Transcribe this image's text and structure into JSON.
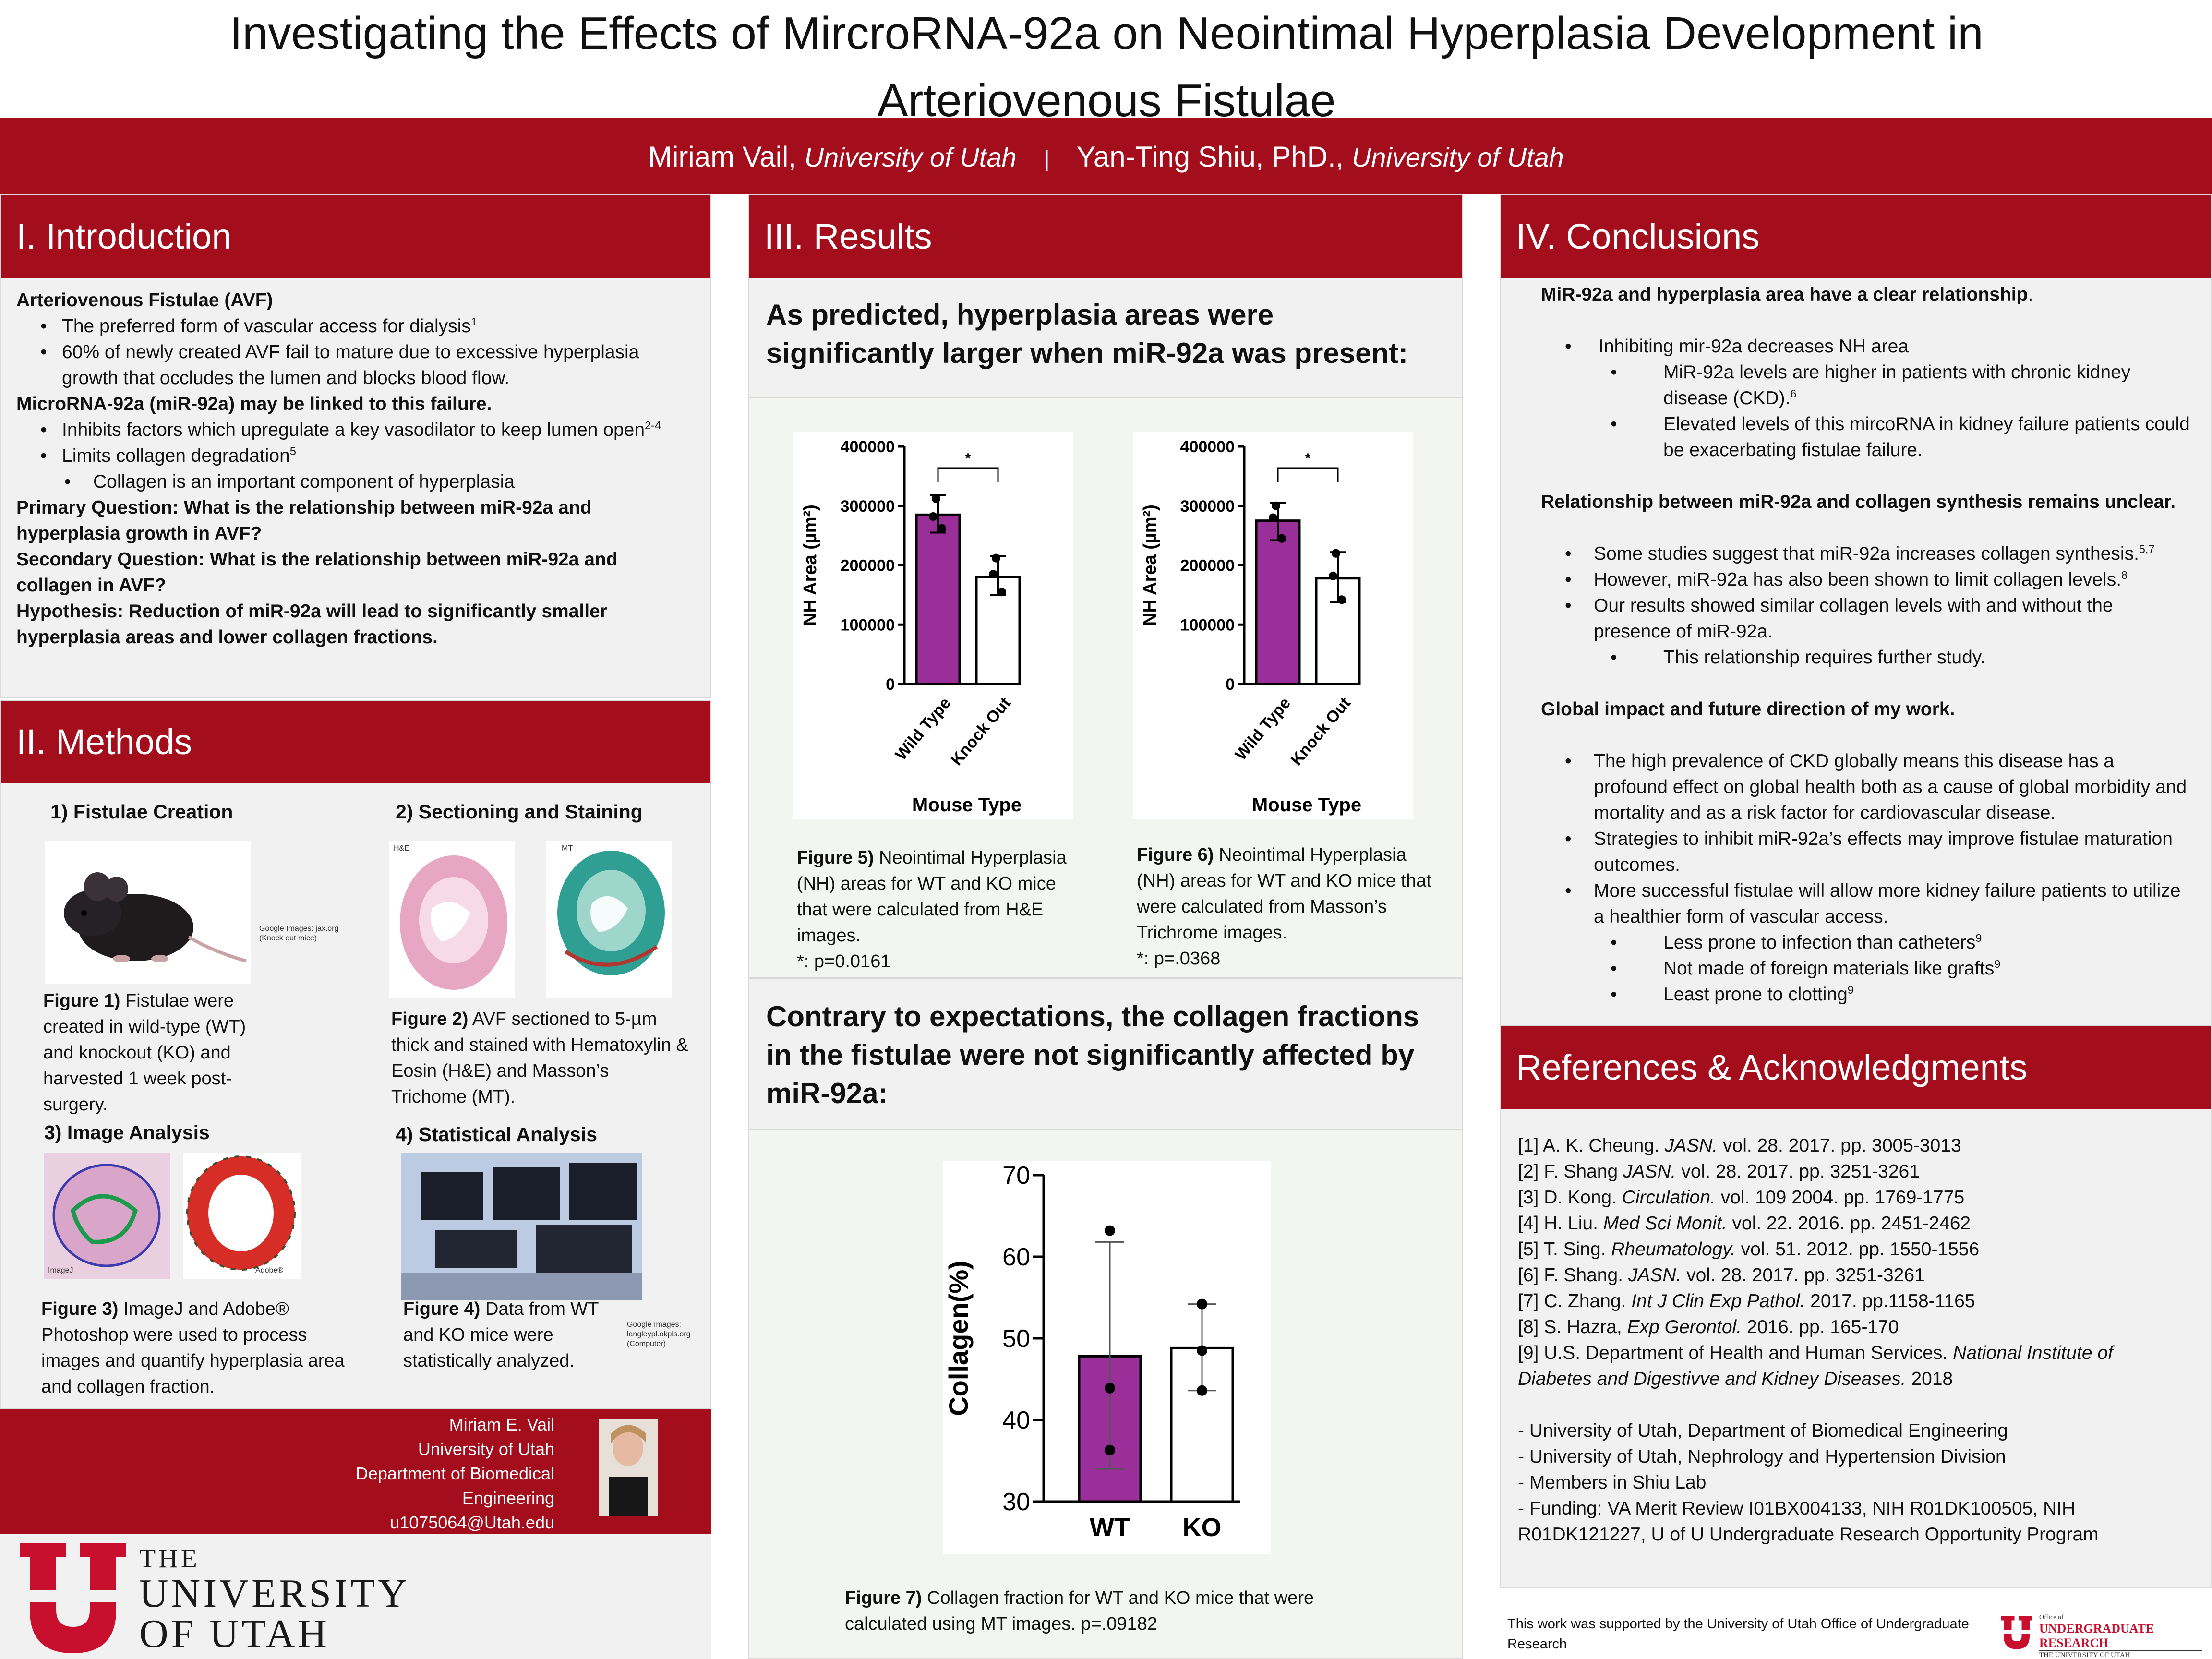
{
  "title": {
    "line1": "Investigating the Effects of MircroRNA-92a on Neointimal Hyperplasia Development in",
    "line2": "Arteriovenous Fistulae"
  },
  "authors": {
    "a1_name": "Miriam Vail, ",
    "a1_affil": "University of Utah",
    "separator": "|",
    "a2_name": "Yan-Ting Shiu, PhD., ",
    "a2_affil": "University of Utah"
  },
  "colors": {
    "brand_red": "#a30d1c",
    "purple": "#9b2f9a",
    "panel_bg": "#f1f1f1"
  },
  "intro": {
    "heading": "I. Introduction",
    "avf_title": "Arteriovenous Fistulae (AVF)",
    "avf_b1": "The preferred form of vascular access for dialysis",
    "avf_b1_sup": "1",
    "avf_b2": "60% of newly created AVF fail to mature due to excessive hyperplasia growth that occludes the lumen and blocks blood flow.",
    "mir_title": "MicroRNA-92a (miR-92a) may be linked to this failure.",
    "mir_b1": "Inhibits factors which upregulate a key vasodilator to keep lumen open",
    "mir_b1_sup": "2-4",
    "mir_b2": "Limits collagen degradation",
    "mir_b2_sup": "5",
    "mir_b3": "Collagen is an important component of hyperplasia",
    "q1": "Primary Question: What is the relationship between miR-92a and hyperplasia growth in AVF?",
    "q2": "Secondary Question: What is the relationship between miR-92a and collagen in AVF?",
    "hyp": "Hypothesis: Reduction of miR-92a will lead to significantly smaller hyperplasia areas and lower collagen fractions."
  },
  "methods": {
    "heading": "II. Methods",
    "s1": "1) Fistulae Creation",
    "s2": "2) Sectioning and Staining",
    "s3": "3) Image Analysis",
    "s4": "4) Statistical Analysis",
    "credit1": "Google Images: jax.org (Knock out mice)",
    "credit4": "Google Images: langleypl.okpls.org (Computer)",
    "he_label": "H&E",
    "mt_label": "MT",
    "imagej_label": "ImageJ",
    "adobe_label": "Adobe®",
    "fig1_label": "Figure 1)",
    "fig1_text": " Fistulae were created in wild-type (WT) and knockout (KO) and harvested 1 week post-surgery.",
    "fig2_label": "Figure 2)",
    "fig2_text": " AVF sectioned to 5-µm thick and stained with Hematoxylin & Eosin (H&E) and Masson’s Trichome (MT).",
    "fig3_label": "Figure 3)",
    "fig3_text": " ImageJ and Adobe® Photoshop were used to process images and quantify hyperplasia area and collagen fraction.",
    "fig4_label": "Figure 4)",
    "fig4_text": " Data from WT and KO mice were statistically analyzed."
  },
  "contact": {
    "name": "Miriam E. Vail",
    "univ": "University of Utah",
    "dept1": "Department of Biomedical",
    "dept2": "Engineering",
    "email": "u1075064@Utah.edu"
  },
  "logo": {
    "the": "THE",
    "university": "UNIVERSITY",
    "of_utah": "OF UTAH"
  },
  "results": {
    "heading": "III. Results",
    "q_top": "As predicted, hyperplasia areas were significantly larger when miR-92a was present:",
    "q_bottom": "Contrary to expectations, the collagen fractions in the fistulae were not significantly affected by miR-92a:",
    "fig5_label": "Figure 5)",
    "fig5_text": "  Neointimal Hyperplasia (NH) areas for WT and KO mice that were calculated from H&E images.",
    "fig5_p": "*: p=0.0161",
    "fig6_label": "Figure 6)",
    "fig6_text": " Neointimal Hyperplasia (NH) areas for WT and KO mice that were calculated from Masson’s Trichrome images.",
    "fig6_p": "*: p=.0368",
    "fig7_label": "Figure 7)",
    "fig7_text": " Collagen fraction for WT and KO mice that were calculated using MT images. p=.09182"
  },
  "chart_data": [
    {
      "type": "bar",
      "ylabel": "NH Area (µm²)",
      "xlabel": "Mouse Type",
      "categories": [
        "Wild Type",
        "Knock Out"
      ],
      "values": [
        285000,
        180000
      ],
      "error_upper": [
        318000,
        215000
      ],
      "error_lower": [
        255000,
        150000
      ],
      "points": [
        [
          312000,
          282000,
          262000
        ],
        [
          212000,
          185000,
          155000
        ]
      ],
      "significance": "*",
      "ylim": [
        0,
        400000
      ],
      "yticks": [
        "0",
        "100000",
        "200000",
        "300000",
        "400000"
      ],
      "colors": [
        "#9b2f9a",
        "#ffffff"
      ]
    },
    {
      "type": "bar",
      "ylabel": "NH Area (µm²)",
      "xlabel": "Mouse Type",
      "categories": [
        "Wild Type",
        "Knock Out"
      ],
      "values": [
        275000,
        178000
      ],
      "error_upper": [
        305000,
        222000
      ],
      "error_lower": [
        242000,
        138000
      ],
      "points": [
        [
          300000,
          280000,
          245000
        ],
        [
          220000,
          182000,
          142000
        ]
      ],
      "significance": "*",
      "ylim": [
        0,
        400000
      ],
      "yticks": [
        "0",
        "100000",
        "200000",
        "300000",
        "400000"
      ],
      "colors": [
        "#9b2f9a",
        "#ffffff"
      ]
    },
    {
      "type": "bar",
      "ylabel": "Collagen(%)",
      "xlabel": "",
      "categories": [
        "WT",
        "KO"
      ],
      "values": [
        47.8,
        48.8
      ],
      "error_upper": [
        61.8,
        54.2
      ],
      "error_lower": [
        34,
        43.6
      ],
      "points": [
        [
          63.2,
          43.9,
          36.3
        ],
        [
          54.2,
          48.5,
          43.6
        ]
      ],
      "ylim": [
        30,
        70
      ],
      "yticks": [
        "30",
        "40",
        "50",
        "60",
        "70"
      ],
      "colors": [
        "#9b2f9a",
        "#ffffff"
      ]
    }
  ],
  "conclusions": {
    "heading": "IV. Conclusions",
    "h1": "MiR-92a and hyperplasia area have a clear relationship",
    "h1_end": ".",
    "c1": "Inhibiting mir-92a decreases NH area",
    "c1a": "MiR-92a levels are higher in patients with chronic kidney disease (CKD).",
    "c1a_sup": "6",
    "c1b": "Elevated levels of this mircoRNA in kidney failure patients could be exacerbating fistulae failure.",
    "h2": "Relationship between miR-92a and collagen synthesis remains unclear.",
    "c2": "Some studies suggest that miR-92a increases collagen synthesis.",
    "c2_sup": "5,7",
    "c3": "However, miR-92a has also been shown to limit collagen levels.",
    "c3_sup": "8",
    "c4": "Our results showed similar collagen levels with and without the presence of miR-92a.",
    "c4a": "This relationship requires further study.",
    "h3": "Global impact and future direction of my work.",
    "c5": "The high prevalence of CKD globally means this disease has a profound effect on global health both as a cause of global morbidity and mortality and as a risk factor for cardiovascular disease.",
    "c6": "Strategies to inhibit miR-92a’s effects may improve fistulae maturation outcomes.",
    "c7": "More successful fistulae will allow more kidney failure patients to utilize a healthier form of vascular access.",
    "c7a": "Less prone to infection than catheters",
    "c7a_sup": "9",
    "c7b": "Not made of foreign materials like grafts",
    "c7b_sup": "9",
    "c7c": "Least prone to clotting",
    "c7c_sup": "9"
  },
  "references": {
    "heading": "References & Acknowledgments",
    "r1a": "[1] A. K. Cheung. ",
    "r1b": "JASN.",
    "r1c": " vol. 28. 2017. pp. 3005-3013",
    "r2a": "[2] F. Shang ",
    "r2b": "JASN.",
    "r2c": " vol. 28. 2017. pp. 3251-3261",
    "r3a": "[3] D. Kong. ",
    "r3b": "Circulation.",
    "r3c": " vol. 109 2004. pp. 1769-1775",
    "r4a": "[4] H. Liu. ",
    "r4b": "Med Sci Monit.",
    "r4c": " vol. 22. 2016. pp. 2451-2462",
    "r5a": "[5] T. Sing. ",
    "r5b": "Rheumatology.",
    "r5c": "  vol. 51. 2012. pp. 1550-1556",
    "r6a": "[6] F. Shang. ",
    "r6b": "JASN.",
    "r6c": " vol. 28. 2017. pp. 3251-3261",
    "r7a": "[7] C. Zhang. ",
    "r7b": "Int J Clin Exp Pathol.",
    "r7c": " 2017. pp.1158-1165",
    "r8a": "[8] S. Hazra, ",
    "r8b": "Exp Gerontol.",
    "r8c": " 2016. pp. 165-170",
    "r9a": "[9] U.S. Department of Health and Human Services. ",
    "r9b": "National Institute of Diabetes and Digestivve and Kidney Diseases.",
    "r9c": " 2018",
    "ack1": "- University of Utah, Department of Biomedical Engineering",
    "ack2": "- University of Utah, Nephrology and Hypertension Division",
    "ack3": "- Members in Shiu Lab",
    "ack4": "- Funding: VA Merit Review I01BX004133, NIH R01DK100505, NIH R01DK121227, U of U Undergraduate Research Opportunity Program"
  },
  "footer": {
    "support": "This work was supported by the University of Utah Office of Undergraduate Research",
    "ur_office": "Office of",
    "ur_name": "UNDERGRADUATE RESEARCH",
    "ur_univ": "THE UNIVERSITY OF UTAH"
  }
}
